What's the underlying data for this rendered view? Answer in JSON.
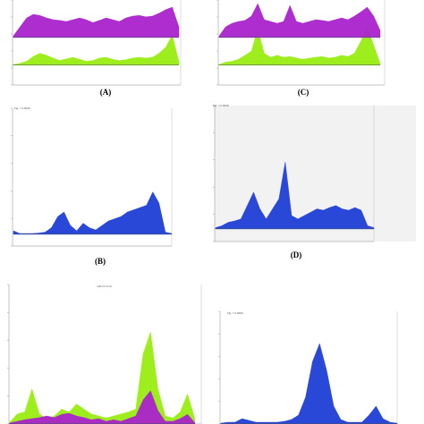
{
  "figure": {
    "panel_labels": {
      "A": "(A)",
      "B": "(B)",
      "C": "(C)",
      "D": "(D)"
    },
    "headers": {
      "B": "Fig. = 0.9049",
      "D": "Fig. = 0.9049",
      "E": "mAU 0.0 min",
      "F": "Fig. = 0.0000"
    }
  },
  "colors": {
    "green": "#99ee11",
    "purple": "#aa22cc",
    "blue": "#1f3fd6",
    "baseline": "#445566"
  },
  "chart_data": [
    {
      "id": "A",
      "type": "area",
      "title": "(A)",
      "x": [
        0,
        0.04,
        0.08,
        0.12,
        0.16,
        0.2,
        0.24,
        0.28,
        0.32,
        0.36,
        0.4,
        0.44,
        0.48,
        0.52,
        0.56,
        0.6,
        0.64,
        0.68,
        0.72,
        0.76,
        0.8,
        0.84,
        0.88,
        0.92,
        0.96,
        1
      ],
      "series": [
        {
          "color": "green",
          "values": [
            0.02,
            0.05,
            0.1,
            0.22,
            0.3,
            0.25,
            0.18,
            0.12,
            0.16,
            0.2,
            0.15,
            0.1,
            0.12,
            0.18,
            0.2,
            0.15,
            0.12,
            0.14,
            0.18,
            0.2,
            0.18,
            0.2,
            0.3,
            0.45,
            0.75,
            0.1
          ]
        },
        {
          "color": "purple",
          "values": [
            0.05,
            0.3,
            0.55,
            0.65,
            0.62,
            0.55,
            0.5,
            0.48,
            0.45,
            0.5,
            0.55,
            0.5,
            0.42,
            0.48,
            0.55,
            0.5,
            0.45,
            0.55,
            0.6,
            0.62,
            0.58,
            0.6,
            0.68,
            0.78,
            0.85,
            0.3
          ]
        }
      ]
    },
    {
      "id": "C",
      "type": "area",
      "title": "(C)",
      "x": [
        0,
        0.04,
        0.08,
        0.12,
        0.16,
        0.2,
        0.24,
        0.28,
        0.32,
        0.36,
        0.4,
        0.44,
        0.48,
        0.52,
        0.56,
        0.6,
        0.64,
        0.68,
        0.72,
        0.76,
        0.8,
        0.84,
        0.88,
        0.92,
        0.96,
        1
      ],
      "series": [
        {
          "color": "green",
          "values": [
            0.02,
            0.08,
            0.1,
            0.15,
            0.25,
            0.35,
            0.9,
            0.3,
            0.2,
            0.25,
            0.2,
            0.22,
            0.18,
            0.15,
            0.18,
            0.2,
            0.22,
            0.18,
            0.2,
            0.25,
            0.22,
            0.3,
            0.6,
            0.95,
            0.5,
            0.05
          ]
        },
        {
          "color": "purple",
          "values": [
            0.05,
            0.3,
            0.4,
            0.45,
            0.48,
            0.6,
            0.95,
            0.5,
            0.45,
            0.4,
            0.45,
            0.9,
            0.45,
            0.4,
            0.45,
            0.5,
            0.48,
            0.45,
            0.5,
            0.55,
            0.5,
            0.6,
            0.72,
            0.85,
            0.6,
            0.2
          ]
        }
      ]
    },
    {
      "id": "B",
      "type": "area",
      "title": "(B)",
      "x": [
        0,
        0.04,
        0.08,
        0.12,
        0.16,
        0.2,
        0.24,
        0.28,
        0.32,
        0.36,
        0.4,
        0.44,
        0.48,
        0.52,
        0.56,
        0.6,
        0.64,
        0.68,
        0.72,
        0.76,
        0.8,
        0.84,
        0.88,
        0.92,
        0.96,
        1
      ],
      "series": [
        {
          "color": "blue",
          "values": [
            0.08,
            0.02,
            0.02,
            0.02,
            0.03,
            0.05,
            0.15,
            0.4,
            0.5,
            0.2,
            0.08,
            0.25,
            0.15,
            0.1,
            0.2,
            0.3,
            0.35,
            0.4,
            0.5,
            0.55,
            0.6,
            0.65,
            0.95,
            0.7,
            0.05,
            0.02
          ]
        }
      ]
    },
    {
      "id": "D",
      "type": "area",
      "title": "(D)",
      "x": [
        0,
        0.04,
        0.08,
        0.12,
        0.16,
        0.2,
        0.24,
        0.28,
        0.32,
        0.36,
        0.4,
        0.44,
        0.48,
        0.52,
        0.56,
        0.6,
        0.64,
        0.68,
        0.72,
        0.76,
        0.8,
        0.84,
        0.88,
        0.92,
        0.96,
        1
      ],
      "series": [
        {
          "color": "blue",
          "values": [
            0.02,
            0.05,
            0.1,
            0.12,
            0.15,
            0.35,
            0.55,
            0.3,
            0.15,
            0.3,
            0.45,
            1.0,
            0.2,
            0.15,
            0.2,
            0.25,
            0.3,
            0.28,
            0.32,
            0.35,
            0.3,
            0.28,
            0.32,
            0.28,
            0.05,
            0.02
          ]
        }
      ]
    },
    {
      "id": "E",
      "type": "area",
      "title": "",
      "x": [
        0,
        0.04,
        0.08,
        0.12,
        0.16,
        0.2,
        0.24,
        0.28,
        0.32,
        0.36,
        0.4,
        0.44,
        0.48,
        0.52,
        0.56,
        0.6,
        0.64,
        0.68,
        0.72,
        0.76,
        0.8,
        0.84,
        0.88,
        0.92,
        0.96,
        1
      ],
      "series": [
        {
          "color": "green",
          "values": [
            0.02,
            0.1,
            0.12,
            0.35,
            0.1,
            0.05,
            0.08,
            0.15,
            0.12,
            0.2,
            0.15,
            0.1,
            0.08,
            0.06,
            0.08,
            0.1,
            0.12,
            0.15,
            0.7,
            0.92,
            0.35,
            0.08,
            0.06,
            0.12,
            0.3,
            0.05
          ]
        },
        {
          "color": "purple",
          "values": [
            0.02,
            0.05,
            0.08,
            0.1,
            0.12,
            0.15,
            0.12,
            0.18,
            0.2,
            0.15,
            0.12,
            0.08,
            0.1,
            0.05,
            0.08,
            0.05,
            0.1,
            0.15,
            0.45,
            0.62,
            0.25,
            0.05,
            0.05,
            0.1,
            0.18,
            0.02
          ]
        }
      ]
    },
    {
      "id": "F",
      "type": "area",
      "title": "",
      "x": [
        0,
        0.04,
        0.08,
        0.12,
        0.16,
        0.2,
        0.24,
        0.28,
        0.32,
        0.36,
        0.4,
        0.44,
        0.48,
        0.52,
        0.56,
        0.6,
        0.64,
        0.68,
        0.72,
        0.76,
        0.8,
        0.84,
        0.88,
        0.92,
        0.96,
        1
      ],
      "series": [
        {
          "color": "blue",
          "values": [
            0.01,
            0.02,
            0.02,
            0.06,
            0.04,
            0.02,
            0.02,
            0.02,
            0.02,
            0.03,
            0.05,
            0.1,
            0.3,
            0.7,
            0.9,
            0.6,
            0.2,
            0.05,
            0.02,
            0.02,
            0.02,
            0.1,
            0.2,
            0.06,
            0.02,
            0.01
          ]
        }
      ]
    }
  ]
}
